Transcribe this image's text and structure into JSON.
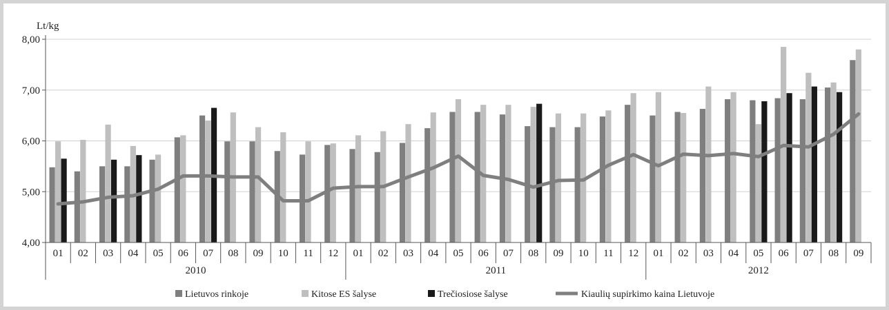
{
  "chart_data": {
    "type": "bar",
    "ylabel": "Lt/kg",
    "ylim": [
      4,
      8
    ],
    "yticks": [
      "4,00",
      "5,00",
      "6,00",
      "7,00",
      "8,00"
    ],
    "grid": true,
    "legend_position": "bottom",
    "months": [
      "01",
      "02",
      "03",
      "04",
      "05",
      "06",
      "07",
      "08",
      "09",
      "10",
      "11",
      "12",
      "01",
      "02",
      "03",
      "04",
      "05",
      "06",
      "07",
      "08",
      "09",
      "10",
      "11",
      "12",
      "01",
      "02",
      "03",
      "04",
      "05",
      "06",
      "07",
      "08",
      "09"
    ],
    "years": [
      {
        "label": "2010",
        "start": 0,
        "count": 12
      },
      {
        "label": "2011",
        "start": 12,
        "count": 12
      },
      {
        "label": "2012",
        "start": 24,
        "count": 9
      }
    ],
    "series": [
      {
        "name": "Lietuvos rinkoje",
        "kind": "bar",
        "color": "#7f7f7f",
        "values": [
          5.48,
          5.4,
          5.5,
          5.5,
          5.63,
          6.07,
          6.5,
          5.99,
          5.99,
          5.8,
          5.73,
          5.92,
          5.84,
          5.78,
          5.96,
          6.25,
          6.57,
          6.57,
          6.52,
          6.29,
          6.27,
          6.27,
          6.48,
          6.71,
          6.5,
          6.57,
          6.63,
          6.82,
          6.8,
          6.84,
          6.82,
          7.05,
          7.59
        ]
      },
      {
        "name": "Kitose ES šalyse",
        "kind": "bar",
        "color": "#bfbfbf",
        "values": [
          5.99,
          6.02,
          6.32,
          5.9,
          5.73,
          6.11,
          6.4,
          6.56,
          6.27,
          6.17,
          5.99,
          5.95,
          6.11,
          6.19,
          6.33,
          6.56,
          6.82,
          6.71,
          6.71,
          6.67,
          6.54,
          6.54,
          6.6,
          6.94,
          6.96,
          6.55,
          7.07,
          6.96,
          6.33,
          7.85,
          7.34,
          7.15,
          7.8
        ]
      },
      {
        "name": "Trečiosiose šalyse",
        "kind": "bar",
        "color": "#1a1a1a",
        "values": [
          5.65,
          null,
          5.63,
          5.72,
          null,
          null,
          6.65,
          null,
          null,
          null,
          null,
          null,
          null,
          null,
          null,
          null,
          null,
          null,
          null,
          6.73,
          null,
          null,
          null,
          null,
          null,
          null,
          null,
          null,
          6.78,
          6.94,
          7.07,
          6.96,
          null
        ]
      },
      {
        "name": "Kiaulių supirkimo kaina Lietuvoje",
        "kind": "line",
        "color": "#7f7f7f",
        "values": [
          4.76,
          4.8,
          4.89,
          4.92,
          5.05,
          5.31,
          5.31,
          5.29,
          5.29,
          4.82,
          4.82,
          5.07,
          5.1,
          5.1,
          5.29,
          5.47,
          5.7,
          5.32,
          5.24,
          5.09,
          5.22,
          5.23,
          5.52,
          5.73,
          5.51,
          5.74,
          5.71,
          5.75,
          5.69,
          5.91,
          5.88,
          6.13,
          6.53
        ]
      }
    ]
  }
}
